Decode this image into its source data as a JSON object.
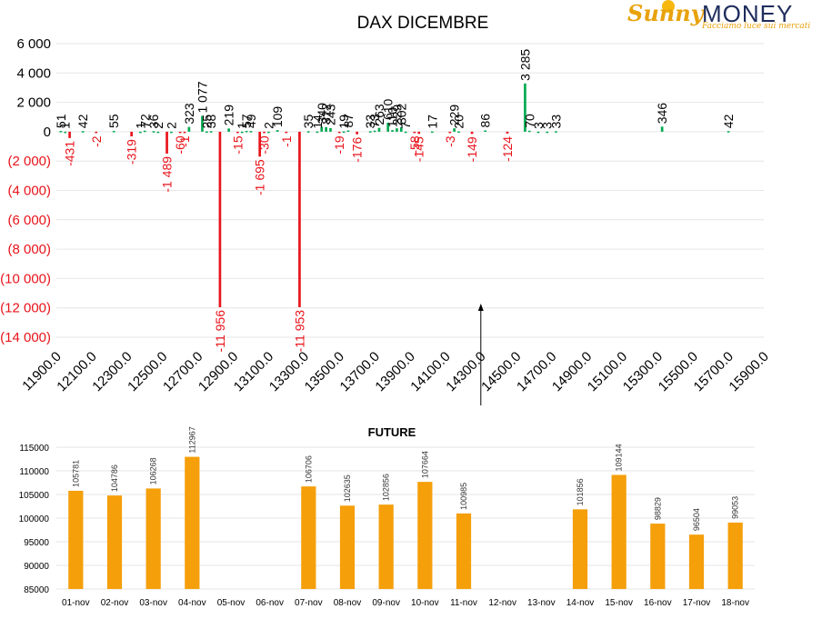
{
  "logo": {
    "brand_sunny": "Sunny",
    "brand_money": "MONEY",
    "tagline": "Facciamo luce sui mercati"
  },
  "colors": {
    "positive": "#00a950",
    "negative": "#e8141b",
    "negative_text": "#e8141b",
    "future_bar": "#f59f0b",
    "grid": "#e6e6e6"
  },
  "chart_data": [
    {
      "type": "bar",
      "title": "DAX DICEMBRE",
      "ylim": [
        -14000,
        6000
      ],
      "yticks": [
        6000,
        4000,
        2000,
        0,
        -2000,
        -4000,
        -6000,
        -8000,
        -10000,
        -12000,
        -14000
      ],
      "ytick_labels": [
        "6 000",
        "4 000",
        "2 000",
        "0",
        "(2 000)",
        "(4 000)",
        "(6 000)",
        "(8 000)",
        "(10 000)",
        "(12 000)",
        "(14 000)"
      ],
      "x_categories": [
        "11900.0",
        "12100.0",
        "12300.0",
        "12500.0",
        "12700.0",
        "12900.0",
        "13100.0",
        "13300.0",
        "13500.0",
        "13700.0",
        "13900.0",
        "14100.0",
        "14300.0",
        "14500.0",
        "14700.0",
        "14900.0",
        "15100.0",
        "15300.0",
        "15500.0",
        "15700.0",
        "15900.0"
      ],
      "x_range": [
        11900,
        15900
      ],
      "grid": true,
      "arrow_annotation_x": 14300,
      "bars": [
        {
          "x": 11925,
          "value": 51,
          "label": "51"
        },
        {
          "x": 11950,
          "value": 1,
          "label": "1"
        },
        {
          "x": 11975,
          "value": -431,
          "label": "-431"
        },
        {
          "x": 12050,
          "value": 42,
          "label": "42"
        },
        {
          "x": 12125,
          "value": -2,
          "label": "-2"
        },
        {
          "x": 12225,
          "value": 55,
          "label": "55"
        },
        {
          "x": 12325,
          "value": -319,
          "label": "-319"
        },
        {
          "x": 12375,
          "value": 1,
          "label": "1"
        },
        {
          "x": 12400,
          "value": 72,
          "label": "72"
        },
        {
          "x": 12450,
          "value": 36,
          "label": "36"
        },
        {
          "x": 12475,
          "value": 2,
          "label": "2"
        },
        {
          "x": 12525,
          "value": -1489,
          "label": "-1 489"
        },
        {
          "x": 12550,
          "value": 2,
          "label": "2"
        },
        {
          "x": 12600,
          "value": -60,
          "label": "-60"
        },
        {
          "x": 12625,
          "value": -1,
          "label": "-1"
        },
        {
          "x": 12650,
          "value": 323,
          "label": "323"
        },
        {
          "x": 12725,
          "value": 1077,
          "label": "1 077"
        },
        {
          "x": 12750,
          "value": 25,
          "label": "25"
        },
        {
          "x": 12775,
          "value": 38,
          "label": "38"
        },
        {
          "x": 12825,
          "value": -11956,
          "label": "-11 956"
        },
        {
          "x": 12875,
          "value": 219,
          "label": "219"
        },
        {
          "x": 12925,
          "value": -15,
          "label": "-15"
        },
        {
          "x": 12950,
          "value": 1,
          "label": "1"
        },
        {
          "x": 12975,
          "value": 57,
          "label": "57"
        },
        {
          "x": 13000,
          "value": 49,
          "label": "49"
        },
        {
          "x": 13050,
          "value": -1695,
          "label": "-1 695"
        },
        {
          "x": 13075,
          "value": -30,
          "label": "-30"
        },
        {
          "x": 13100,
          "value": 2,
          "label": "2"
        },
        {
          "x": 13150,
          "value": 109,
          "label": "109"
        },
        {
          "x": 13200,
          "value": -1,
          "label": "-1"
        },
        {
          "x": 13275,
          "value": -11953,
          "label": "-11 953"
        },
        {
          "x": 13325,
          "value": 35,
          "label": "35"
        },
        {
          "x": 13375,
          "value": 14,
          "label": "14"
        },
        {
          "x": 13400,
          "value": 340,
          "label": "340"
        },
        {
          "x": 13425,
          "value": 312,
          "label": "312"
        },
        {
          "x": 13450,
          "value": 243,
          "label": "243"
        },
        {
          "x": 13500,
          "value": -19,
          "label": "-19"
        },
        {
          "x": 13525,
          "value": 19,
          "label": "19"
        },
        {
          "x": 13550,
          "value": 87,
          "label": "87"
        },
        {
          "x": 13600,
          "value": -176,
          "label": "-176"
        },
        {
          "x": 13675,
          "value": 33,
          "label": "33"
        },
        {
          "x": 13700,
          "value": 73,
          "label": "73"
        },
        {
          "x": 13725,
          "value": 263,
          "label": "263"
        },
        {
          "x": 13775,
          "value": 610,
          "label": "610"
        },
        {
          "x": 13800,
          "value": 110,
          "label": "110"
        },
        {
          "x": 13825,
          "value": 229,
          "label": "229"
        },
        {
          "x": 13850,
          "value": 302,
          "label": "302"
        },
        {
          "x": 13875,
          "value": 7,
          "label": "7"
        },
        {
          "x": 13925,
          "value": -58,
          "label": "-58"
        },
        {
          "x": 13950,
          "value": -145,
          "label": "-145"
        },
        {
          "x": 14025,
          "value": 17,
          "label": "17"
        },
        {
          "x": 14125,
          "value": -3,
          "label": "-3"
        },
        {
          "x": 14150,
          "value": 229,
          "label": "229"
        },
        {
          "x": 14175,
          "value": 20,
          "label": "20"
        },
        {
          "x": 14250,
          "value": -149,
          "label": "-149"
        },
        {
          "x": 14325,
          "value": 86,
          "label": "86"
        },
        {
          "x": 14450,
          "value": -124,
          "label": "-124"
        },
        {
          "x": 14550,
          "value": 3285,
          "label": "3 285"
        },
        {
          "x": 14575,
          "value": 70,
          "label": "70"
        },
        {
          "x": 14625,
          "value": 3,
          "label": "3"
        },
        {
          "x": 14675,
          "value": 3,
          "label": "3"
        },
        {
          "x": 14725,
          "value": 33,
          "label": "33"
        },
        {
          "x": 15325,
          "value": 346,
          "label": "346"
        },
        {
          "x": 15700,
          "value": 42,
          "label": "42"
        }
      ]
    },
    {
      "type": "bar",
      "title": "FUTURE",
      "ylim": [
        85000,
        115000
      ],
      "yticks": [
        115000,
        110000,
        105000,
        100000,
        95000,
        90000,
        85000
      ],
      "ytick_labels": [
        "115000",
        "110000",
        "105000",
        "100000",
        "95000",
        "90000",
        "85000"
      ],
      "categories": [
        "01-nov",
        "02-nov",
        "03-nov",
        "04-nov",
        "05-nov",
        "06-nov",
        "07-nov",
        "08-nov",
        "09-nov",
        "10-nov",
        "11-nov",
        "12-nov",
        "13-nov",
        "14-nov",
        "15-nov",
        "16-nov",
        "17-nov",
        "18-nov"
      ],
      "values": [
        105781,
        104786,
        106268,
        112967,
        null,
        null,
        106706,
        102635,
        102856,
        107664,
        100985,
        null,
        null,
        101856,
        109144,
        98829,
        96504,
        99053
      ],
      "value_labels": [
        "105781",
        "104786",
        "106268",
        "112967",
        "",
        "",
        "106706",
        "102635",
        "102856",
        "107664",
        "100985",
        "",
        "",
        "101856",
        "109144",
        "98829",
        "96504",
        "99053"
      ]
    }
  ]
}
